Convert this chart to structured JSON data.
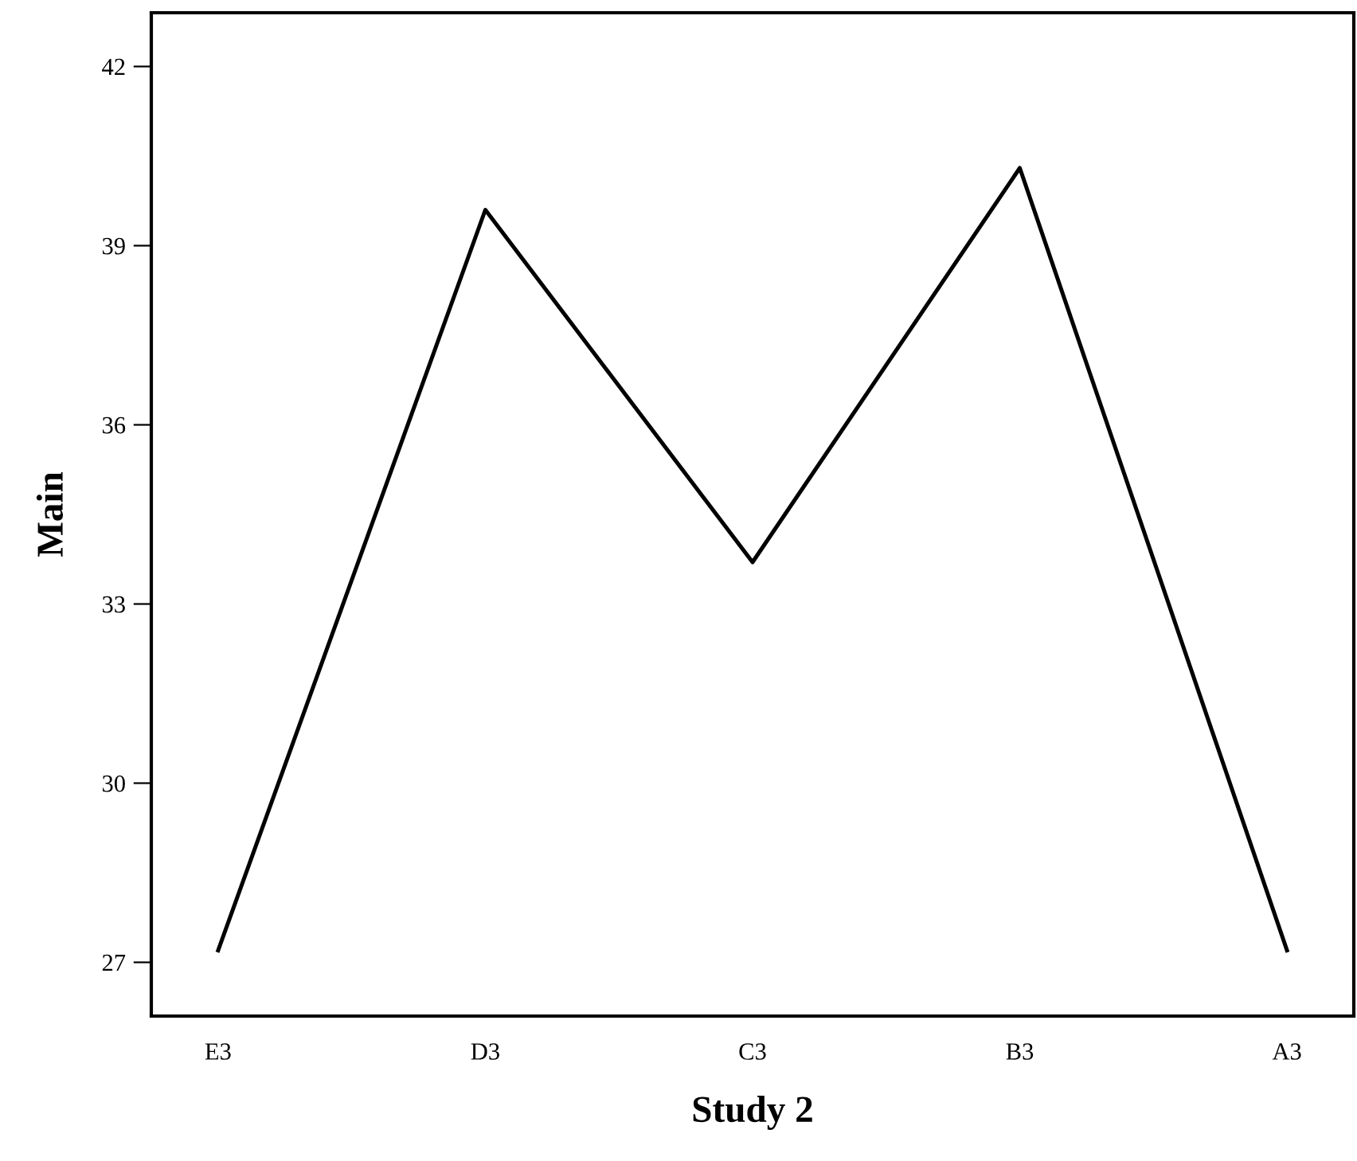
{
  "chart_data": {
    "type": "line",
    "xlabel": "Study 2",
    "ylabel": "Main",
    "categories": [
      "E3",
      "D3",
      "C3",
      "B3",
      "A3"
    ],
    "series": [
      {
        "color": "#000000",
        "values": [
          27.2,
          39.6,
          33.7,
          40.3,
          27.2
        ]
      }
    ],
    "ylim": [
      26.1,
      42.9
    ],
    "yticks": [
      27,
      30,
      33,
      36,
      39,
      42
    ],
    "grid": false,
    "legend": false,
    "marker": "none",
    "line_style": "solid"
  }
}
